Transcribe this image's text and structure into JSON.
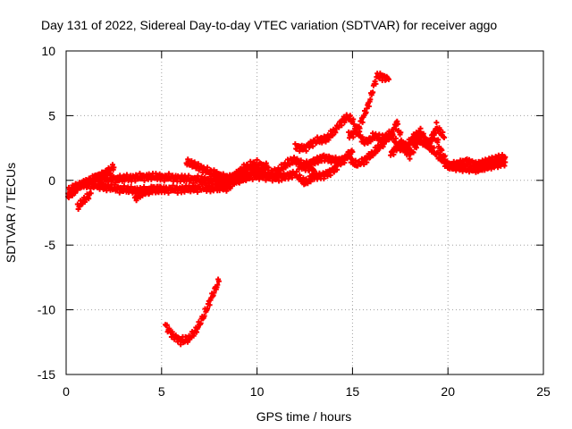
{
  "chart_data": {
    "type": "scatter",
    "title": "Day 131 of 2022, Sidereal Day-to-day VTEC variation (SDTVAR) for receiver aggo",
    "xlabel": "GPS time / hours",
    "ylabel": "SDTVAR / TECUs",
    "xlim": [
      0,
      25
    ],
    "ylim": [
      -15,
      10
    ],
    "xticks": [
      "0",
      "5",
      "10",
      "15",
      "20",
      "25"
    ],
    "yticks": [
      "-15",
      "-10",
      "-5",
      "0",
      "5",
      "10"
    ],
    "grid": true,
    "marker": "plus",
    "series": [
      {
        "name": "SDTVAR",
        "color": "#ff0000",
        "tracks": [
          {
            "x": [
              0.1,
              0.4,
              0.8,
              1.2,
              1.8,
              2.3,
              2.5
            ],
            "y": [
              -1.2,
              -0.9,
              -0.3,
              0.0,
              0.4,
              0.8,
              1.0
            ]
          },
          {
            "x": [
              0.1,
              0.5,
              1.0,
              2.0,
              3.0,
              4.0,
              5.0,
              6.0,
              7.0,
              8.0,
              8.6
            ],
            "y": [
              -0.8,
              -0.5,
              -0.3,
              -0.5,
              -0.7,
              -0.8,
              -0.7,
              -0.7,
              -0.6,
              -0.6,
              -0.5
            ]
          },
          {
            "x": [
              1.5,
              2.5,
              3.5,
              4.5,
              5.5,
              6.5,
              7.5,
              8.0
            ],
            "y": [
              0.2,
              0.1,
              0.2,
              0.3,
              0.2,
              0.1,
              0.0,
              -0.1
            ]
          },
          {
            "x": [
              0.6,
              0.9,
              1.3
            ],
            "y": [
              -2.1,
              -1.6,
              -1.0
            ]
          },
          {
            "x": [
              3.6,
              4.0,
              4.5,
              5.0
            ],
            "y": [
              -1.4,
              -1.0,
              -0.7,
              -0.7
            ]
          },
          {
            "x": [
              5.2,
              5.6,
              6.0,
              6.4,
              6.8,
              7.2,
              7.6,
              8.0
            ],
            "y": [
              -11.2,
              -12.0,
              -12.4,
              -12.3,
              -11.6,
              -10.5,
              -9.1,
              -7.8
            ]
          },
          {
            "x": [
              6.3,
              7.0,
              7.6,
              8.0,
              8.5,
              9.0,
              9.4
            ],
            "y": [
              1.4,
              1.0,
              0.6,
              0.4,
              0.2,
              0.1,
              0.3
            ]
          },
          {
            "x": [
              8.0,
              8.5,
              9.0,
              9.5,
              10.0,
              10.5,
              11.0,
              11.5,
              11.9,
              12.5,
              13.0
            ],
            "y": [
              -0.2,
              0.1,
              0.6,
              0.9,
              0.8,
              0.5,
              0.6,
              1.2,
              1.6,
              1.1,
              0.7
            ]
          },
          {
            "x": [
              8.4,
              9.0,
              9.5,
              10.0,
              10.5,
              11.0,
              11.4,
              12.0,
              12.5,
              13.0,
              13.5,
              14.0,
              14.5,
              15.0
            ],
            "y": [
              -0.5,
              0.0,
              0.3,
              0.4,
              0.3,
              0.2,
              0.3,
              0.5,
              -0.2,
              0.3,
              0.4,
              0.8,
              1.6,
              2.2
            ]
          },
          {
            "x": [
              9.0,
              9.5,
              10.0,
              10.6
            ],
            "y": [
              0.6,
              1.1,
              1.3,
              1.0
            ]
          },
          {
            "x": [
              12.0,
              12.5,
              13.0,
              13.6,
              14.0,
              14.4,
              14.8,
              15.0,
              15.2,
              15.4,
              15.6,
              15.8,
              16.1,
              16.4,
              16.6
            ],
            "y": [
              2.6,
              2.5,
              3.0,
              3.2,
              3.7,
              4.5,
              4.9,
              4.6,
              4.0,
              3.4,
              3.0,
              3.0,
              3.4,
              3.3,
              2.6
            ]
          },
          {
            "x": [
              12.2,
              12.6,
              13.0,
              13.5,
              14.0,
              14.5,
              14.8,
              15.0,
              15.2,
              15.6,
              16.0,
              16.3,
              16.6,
              17.0,
              17.3
            ],
            "y": [
              1.0,
              1.2,
              1.5,
              1.8,
              1.6,
              1.5,
              2.0,
              1.4,
              1.2,
              1.5,
              2.0,
              2.4,
              2.9,
              3.5,
              4.3
            ]
          },
          {
            "x": [
              14.8,
              15.2,
              15.6,
              15.9,
              16.1,
              16.3,
              16.6,
              16.9
            ],
            "y": [
              3.5,
              3.7,
              5.0,
              6.1,
              7.2,
              8.1,
              8.0,
              7.8
            ]
          },
          {
            "x": [
              16.5,
              17.0,
              17.5,
              18.0,
              18.5,
              19.0,
              19.3,
              19.6,
              20.0,
              20.5,
              21.0,
              21.5,
              22.0,
              22.5,
              23.0
            ],
            "y": [
              3.2,
              3.6,
              2.4,
              2.9,
              3.4,
              2.9,
              3.6,
              2.4,
              1.2,
              1.0,
              0.9,
              0.8,
              1.0,
              1.2,
              1.4
            ]
          },
          {
            "x": [
              17.0,
              17.5,
              18.0,
              18.5,
              19.0,
              19.5,
              20.0,
              20.5,
              21.0,
              21.5,
              22.0,
              22.5,
              23.0
            ],
            "y": [
              2.0,
              2.9,
              1.9,
              3.1,
              2.6,
              1.9,
              1.1,
              1.3,
              1.5,
              1.2,
              1.4,
              1.6,
              1.8
            ]
          },
          {
            "x": [
              17.3,
              17.6,
              17.8,
              18.2,
              18.6,
              19.0,
              19.4,
              19.8
            ],
            "y": [
              4.6,
              3.0,
              2.2,
              3.4,
              3.8,
              2.6,
              4.2,
              3.3
            ]
          }
        ]
      }
    ]
  }
}
